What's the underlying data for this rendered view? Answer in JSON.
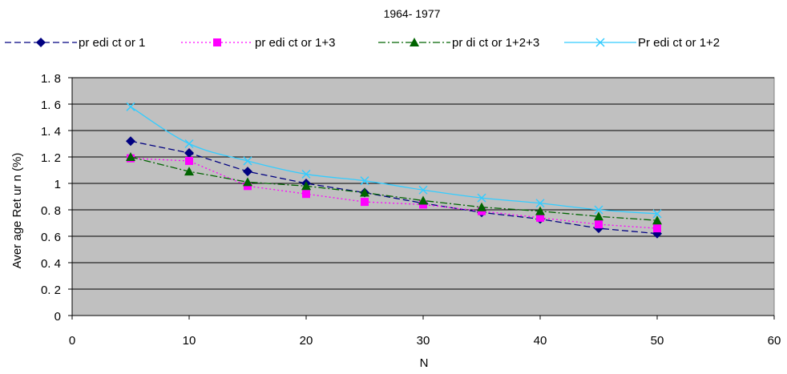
{
  "chart_data": {
    "type": "line",
    "title": "1964- 1977",
    "xlabel": "N",
    "ylabel": "Aver age Ret ur n (%)",
    "xlim": [
      0,
      60
    ],
    "ylim": [
      0,
      1.8
    ],
    "x_ticks": [
      0,
      10,
      20,
      30,
      40,
      50,
      60
    ],
    "x_tick_labels": [
      "0",
      "10",
      "20",
      "30",
      "40",
      "50",
      "60"
    ],
    "y_ticks": [
      0,
      0.2,
      0.4,
      0.6,
      0.8,
      1.0,
      1.2,
      1.4,
      1.6,
      1.8
    ],
    "y_tick_labels": [
      "0",
      "0. 2",
      "0. 4",
      "0. 6",
      "0. 8",
      "1",
      "1. 2",
      "1. 4",
      "1. 6",
      "1. 8"
    ],
    "grid": "horizontal",
    "legend_position": "top",
    "plot_background": "#c0c0c0",
    "x": [
      5,
      10,
      15,
      20,
      25,
      30,
      35,
      40,
      45,
      50
    ],
    "series": [
      {
        "name": "pr edi ct or 1",
        "values": [
          1.32,
          1.23,
          1.09,
          1.0,
          0.93,
          0.85,
          0.78,
          0.73,
          0.66,
          0.62
        ],
        "color": "#000080",
        "marker": "diamond",
        "dash": "dashed"
      },
      {
        "name": "pr edi ct or 1+3",
        "values": [
          1.19,
          1.17,
          0.98,
          0.92,
          0.86,
          0.84,
          0.79,
          0.74,
          0.69,
          0.66
        ],
        "color": "#ff00ff",
        "marker": "square",
        "dash": "dotted"
      },
      {
        "name": "pr di ct or 1+2+3",
        "values": [
          1.2,
          1.09,
          1.01,
          0.98,
          0.93,
          0.87,
          0.82,
          0.79,
          0.75,
          0.72
        ],
        "color": "#006400",
        "marker": "triangle",
        "dash": "dashdot"
      },
      {
        "name": "Pr edi ct or 1+2",
        "values": [
          1.58,
          1.3,
          1.17,
          1.07,
          1.02,
          0.95,
          0.89,
          0.85,
          0.8,
          0.77
        ],
        "color": "#33ccff",
        "marker": "x",
        "dash": "solid"
      }
    ]
  }
}
